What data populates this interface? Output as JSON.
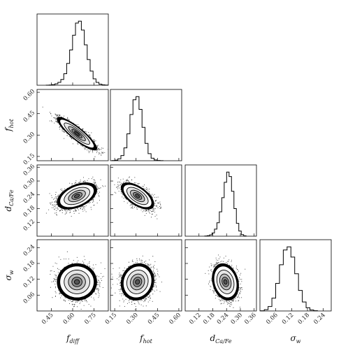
{
  "chart_data": {
    "type": "corner",
    "parameters": [
      {
        "key": "f_diff",
        "base": "f",
        "sub": "diff",
        "range": [
          0.35,
          0.85
        ],
        "ticks": [
          "0.45",
          "0.60",
          "0.75"
        ],
        "tick_values": [
          0.45,
          0.6,
          0.75
        ],
        "mean": 0.63,
        "sd": 0.06
      },
      {
        "key": "f_hot",
        "base": "f",
        "sub": "hot",
        "range": [
          0.12,
          0.62
        ],
        "ticks": [
          "0.15",
          "0.30",
          "0.45",
          "0.60"
        ],
        "tick_values": [
          0.15,
          0.3,
          0.45,
          0.6
        ],
        "mean": 0.31,
        "sd": 0.05
      },
      {
        "key": "d_Ca/Fe",
        "base": "d",
        "sub": "Ca/Fe",
        "range": [
          0.06,
          0.37
        ],
        "ticks": [
          "0.12",
          "0.18",
          "0.24",
          "0.30",
          "0.36"
        ],
        "tick_values": [
          0.12,
          0.18,
          0.24,
          0.3,
          0.36
        ],
        "mean": 0.235,
        "sd": 0.025
      },
      {
        "key": "sigma_w",
        "base": "σ",
        "sub": "w",
        "range": [
          0.0,
          0.27
        ],
        "ticks": [
          "0.06",
          "0.12",
          "0.18",
          "0.24"
        ],
        "tick_values": [
          0.06,
          0.12,
          0.18,
          0.24
        ],
        "mean": 0.11,
        "sd": 0.03
      }
    ],
    "correlations": {
      "1,0": -0.88,
      "2,0": 0.45,
      "2,1": -0.6,
      "3,0": 0.0,
      "3,1": 0.1,
      "3,2": -0.2
    },
    "histograms": {
      "f_diff": [
        0.002,
        0.004,
        0.01,
        0.022,
        0.045,
        0.09,
        0.18,
        0.34,
        0.55,
        0.78,
        0.97,
        1.0,
        0.86,
        0.63,
        0.4,
        0.22,
        0.1,
        0.045,
        0.018,
        0.007,
        0.003
      ],
      "f_hot": [
        0.003,
        0.01,
        0.03,
        0.08,
        0.2,
        0.42,
        0.72,
        0.95,
        1.0,
        0.8,
        0.52,
        0.27,
        0.11,
        0.04,
        0.012,
        0.004,
        0.001
      ],
      "d_Ca/Fe": [
        0.003,
        0.008,
        0.02,
        0.05,
        0.11,
        0.21,
        0.38,
        0.6,
        0.84,
        1.0,
        0.93,
        0.7,
        0.43,
        0.2,
        0.08,
        0.025,
        0.006
      ],
      "sigma_w": [
        0.003,
        0.02,
        0.07,
        0.2,
        0.43,
        0.72,
        0.95,
        1.0,
        0.84,
        0.58,
        0.32,
        0.14,
        0.05,
        0.015,
        0.004
      ]
    },
    "contour_levels_sigma": [
      0.5,
      1.0,
      1.5,
      2.0
    ],
    "grid": false,
    "legend": "none"
  }
}
